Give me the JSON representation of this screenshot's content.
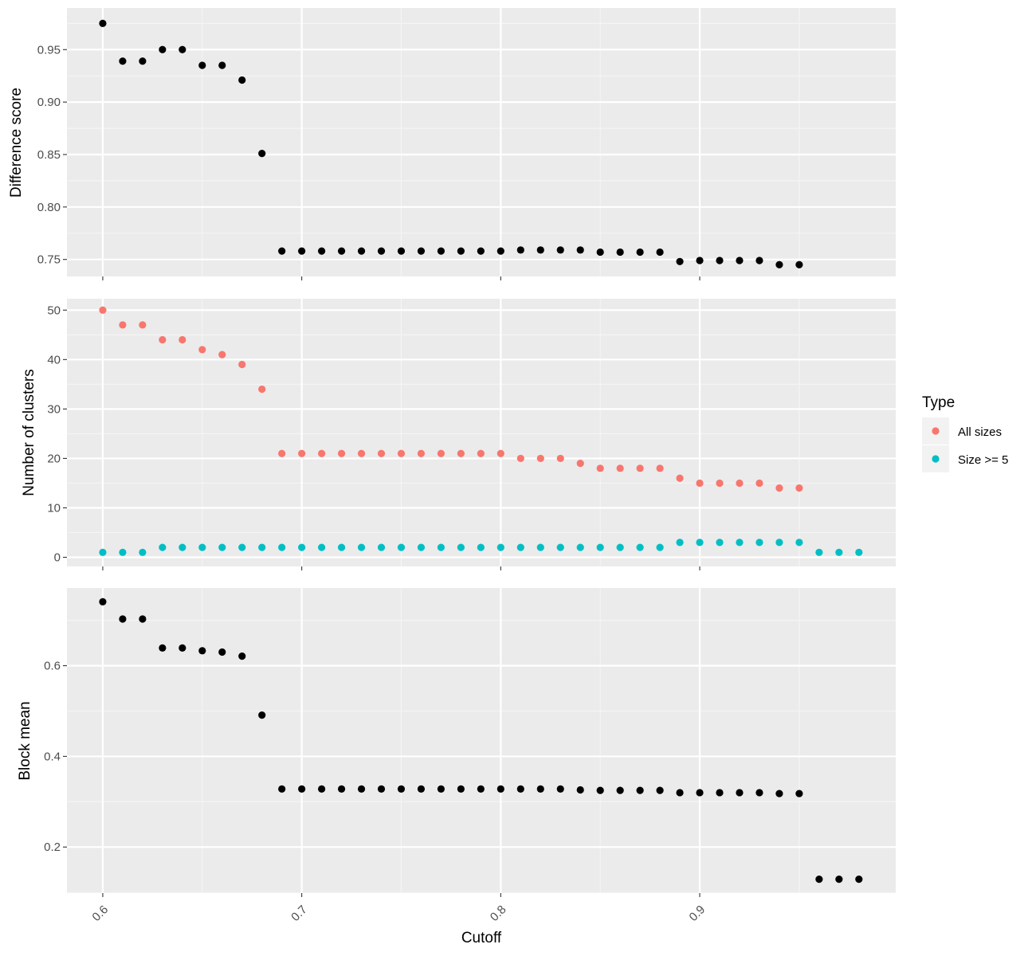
{
  "chart_data": {
    "type": "scatter",
    "xlabel": "Cutoff",
    "xlim": [
      0.582,
      0.9985
    ],
    "xticks": [
      0.6,
      0.7,
      0.8,
      0.9
    ],
    "xtick_labels": [
      "0.6",
      "0.7",
      "0.8",
      "0.9"
    ],
    "panels": [
      {
        "ylabel": "Difference score",
        "ylim": [
          0.7338,
          0.9897
        ],
        "yticks": [
          0.75,
          0.8,
          0.85,
          0.9,
          0.95
        ],
        "ytick_labels": [
          "0.75",
          "0.80",
          "0.85",
          "0.90",
          "0.95"
        ],
        "series": [
          {
            "color": "#000000",
            "x": [
              0.6,
              0.61,
              0.62,
              0.63,
              0.64,
              0.65,
              0.66,
              0.67,
              0.68,
              0.69,
              0.7,
              0.71,
              0.72,
              0.73,
              0.74,
              0.75,
              0.76,
              0.77,
              0.78,
              0.79,
              0.8,
              0.81,
              0.82,
              0.83,
              0.84,
              0.85,
              0.86,
              0.87,
              0.88,
              0.89,
              0.9,
              0.91,
              0.92,
              0.93,
              0.94,
              0.95
            ],
            "y": [
              0.975,
              0.939,
              0.939,
              0.95,
              0.95,
              0.935,
              0.935,
              0.921,
              0.851,
              0.758,
              0.758,
              0.758,
              0.758,
              0.758,
              0.758,
              0.758,
              0.758,
              0.758,
              0.758,
              0.758,
              0.758,
              0.759,
              0.759,
              0.759,
              0.759,
              0.757,
              0.757,
              0.757,
              0.757,
              0.748,
              0.749,
              0.749,
              0.749,
              0.749,
              0.745,
              0.745
            ]
          }
        ]
      },
      {
        "ylabel": "Number of clusters",
        "ylim": [
          -1.85,
          52.3
        ],
        "yticks": [
          0,
          10,
          20,
          30,
          40,
          50
        ],
        "ytick_labels": [
          "0",
          "10",
          "20",
          "30",
          "40",
          "50"
        ],
        "series": [
          {
            "name": "All sizes",
            "color": "#F8766D",
            "x": [
              0.6,
              0.61,
              0.62,
              0.63,
              0.64,
              0.65,
              0.66,
              0.67,
              0.68,
              0.69,
              0.7,
              0.71,
              0.72,
              0.73,
              0.74,
              0.75,
              0.76,
              0.77,
              0.78,
              0.79,
              0.8,
              0.81,
              0.82,
              0.83,
              0.84,
              0.85,
              0.86,
              0.87,
              0.88,
              0.89,
              0.9,
              0.91,
              0.92,
              0.93,
              0.94,
              0.95
            ],
            "y": [
              50,
              47,
              47,
              44,
              44,
              42,
              41,
              39,
              34,
              21,
              21,
              21,
              21,
              21,
              21,
              21,
              21,
              21,
              21,
              21,
              21,
              20,
              20,
              20,
              19,
              18,
              18,
              18,
              18,
              16,
              15,
              15,
              15,
              15,
              14,
              14
            ]
          },
          {
            "name": "Size >= 5",
            "color": "#00BFC4",
            "x": [
              0.6,
              0.61,
              0.62,
              0.63,
              0.64,
              0.65,
              0.66,
              0.67,
              0.68,
              0.69,
              0.7,
              0.71,
              0.72,
              0.73,
              0.74,
              0.75,
              0.76,
              0.77,
              0.78,
              0.79,
              0.8,
              0.81,
              0.82,
              0.83,
              0.84,
              0.85,
              0.86,
              0.87,
              0.88,
              0.89,
              0.9,
              0.91,
              0.92,
              0.93,
              0.94,
              0.95,
              0.96,
              0.97,
              0.98
            ],
            "y": [
              1,
              1,
              1,
              2,
              2,
              2,
              2,
              2,
              2,
              2,
              2,
              2,
              2,
              2,
              2,
              2,
              2,
              2,
              2,
              2,
              2,
              2,
              2,
              2,
              2,
              2,
              2,
              2,
              2,
              3,
              3,
              3,
              3,
              3,
              3,
              3,
              1,
              1,
              1
            ]
          }
        ]
      },
      {
        "ylabel": "Block mean",
        "ylim": [
          0.0985,
          0.7715
        ],
        "yticks": [
          0.2,
          0.4,
          0.6
        ],
        "ytick_labels": [
          "0.2",
          "0.4",
          "0.6"
        ],
        "series": [
          {
            "color": "#000000",
            "x": [
              0.6,
              0.61,
              0.62,
              0.63,
              0.64,
              0.65,
              0.66,
              0.67,
              0.68,
              0.69,
              0.7,
              0.71,
              0.72,
              0.73,
              0.74,
              0.75,
              0.76,
              0.77,
              0.78,
              0.79,
              0.8,
              0.81,
              0.82,
              0.83,
              0.84,
              0.85,
              0.86,
              0.87,
              0.88,
              0.89,
              0.9,
              0.91,
              0.92,
              0.93,
              0.94,
              0.95,
              0.96,
              0.97,
              0.98
            ],
            "y": [
              0.741,
              0.703,
              0.703,
              0.639,
              0.639,
              0.633,
              0.63,
              0.621,
              0.491,
              0.328,
              0.328,
              0.328,
              0.328,
              0.328,
              0.328,
              0.328,
              0.328,
              0.328,
              0.328,
              0.328,
              0.328,
              0.328,
              0.328,
              0.328,
              0.326,
              0.325,
              0.325,
              0.325,
              0.325,
              0.32,
              0.32,
              0.32,
              0.32,
              0.32,
              0.318,
              0.318,
              0.129,
              0.129,
              0.129
            ]
          }
        ]
      }
    ],
    "legend": {
      "title": "Type",
      "position": "right",
      "entries": [
        {
          "label": "All sizes",
          "color": "#F8766D"
        },
        {
          "label": "Size >= 5",
          "color": "#00BFC4"
        }
      ]
    }
  }
}
